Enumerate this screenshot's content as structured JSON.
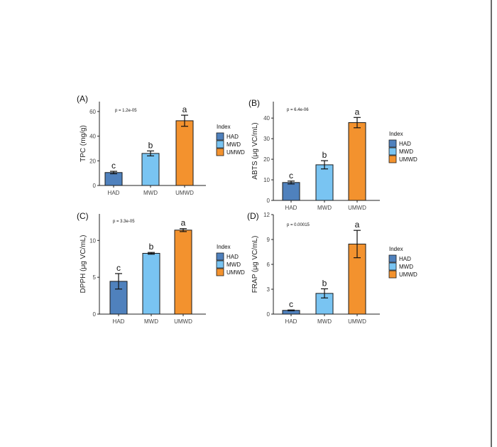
{
  "colors": {
    "HAD": "#4f81bd",
    "MWD": "#79c4f2",
    "UMWD": "#f3922e"
  },
  "legend": {
    "title": "Index",
    "entries": [
      "HAD",
      "MWD",
      "UMWD"
    ]
  },
  "chart_data": [
    {
      "type": "bar",
      "panel_label": "(A)",
      "p_value_text": "p = 1.2e-05",
      "ylabel": "TPC (mg/g)",
      "categories": [
        "HAD",
        "MWD",
        "UMWD"
      ],
      "values": [
        10.5,
        26,
        52.5
      ],
      "errors": [
        1,
        2,
        4.5
      ],
      "sig_letters": [
        "c",
        "b",
        "a"
      ],
      "ylim": [
        0,
        68
      ],
      "yticks": [
        "0",
        "20",
        "40",
        "60"
      ],
      "ytick_values": [
        0,
        20,
        40,
        60
      ],
      "legend": "right"
    },
    {
      "type": "bar",
      "panel_label": "(B)",
      "p_value_text": "p = 6.4e-06",
      "ylabel": "ABTS (μg VC/mL)",
      "categories": [
        "HAD",
        "MWD",
        "UMWD"
      ],
      "values": [
        8.7,
        17.3,
        37.8
      ],
      "errors": [
        0.7,
        2,
        2.5
      ],
      "sig_letters": [
        "c",
        "b",
        "a"
      ],
      "ylim": [
        0,
        48
      ],
      "yticks": [
        "0",
        "10",
        "20",
        "30",
        "40"
      ],
      "ytick_values": [
        0,
        10,
        20,
        30,
        40
      ],
      "legend": "right"
    },
    {
      "type": "bar",
      "panel_label": "(C)",
      "p_value_text": "p = 3.3e-05",
      "ylabel": "DPPH (μg VC/mL)",
      "categories": [
        "HAD",
        "MWD",
        "UMWD"
      ],
      "values": [
        4.45,
        8.25,
        11.4
      ],
      "errors": [
        1.05,
        0.12,
        0.2
      ],
      "sig_letters": [
        "c",
        "b",
        "a"
      ],
      "ylim": [
        0,
        13.6
      ],
      "yticks": [
        "0",
        "5",
        "10"
      ],
      "ytick_values": [
        0,
        5,
        10
      ],
      "legend": "right"
    },
    {
      "type": "bar",
      "panel_label": "(D)",
      "p_value_text": "p = 0.00015",
      "ylabel": "FRAP (μg VC/mL)",
      "categories": [
        "HAD",
        "MWD",
        "UMWD"
      ],
      "values": [
        0.45,
        2.5,
        8.45
      ],
      "errors": [
        0.05,
        0.55,
        1.65
      ],
      "sig_letters": [
        "c",
        "b",
        "a"
      ],
      "ylim": [
        0,
        12
      ],
      "yticks": [
        "0",
        "3",
        "6",
        "9",
        "12"
      ],
      "ytick_values": [
        0,
        3,
        6,
        9,
        12
      ],
      "legend": "right"
    }
  ]
}
